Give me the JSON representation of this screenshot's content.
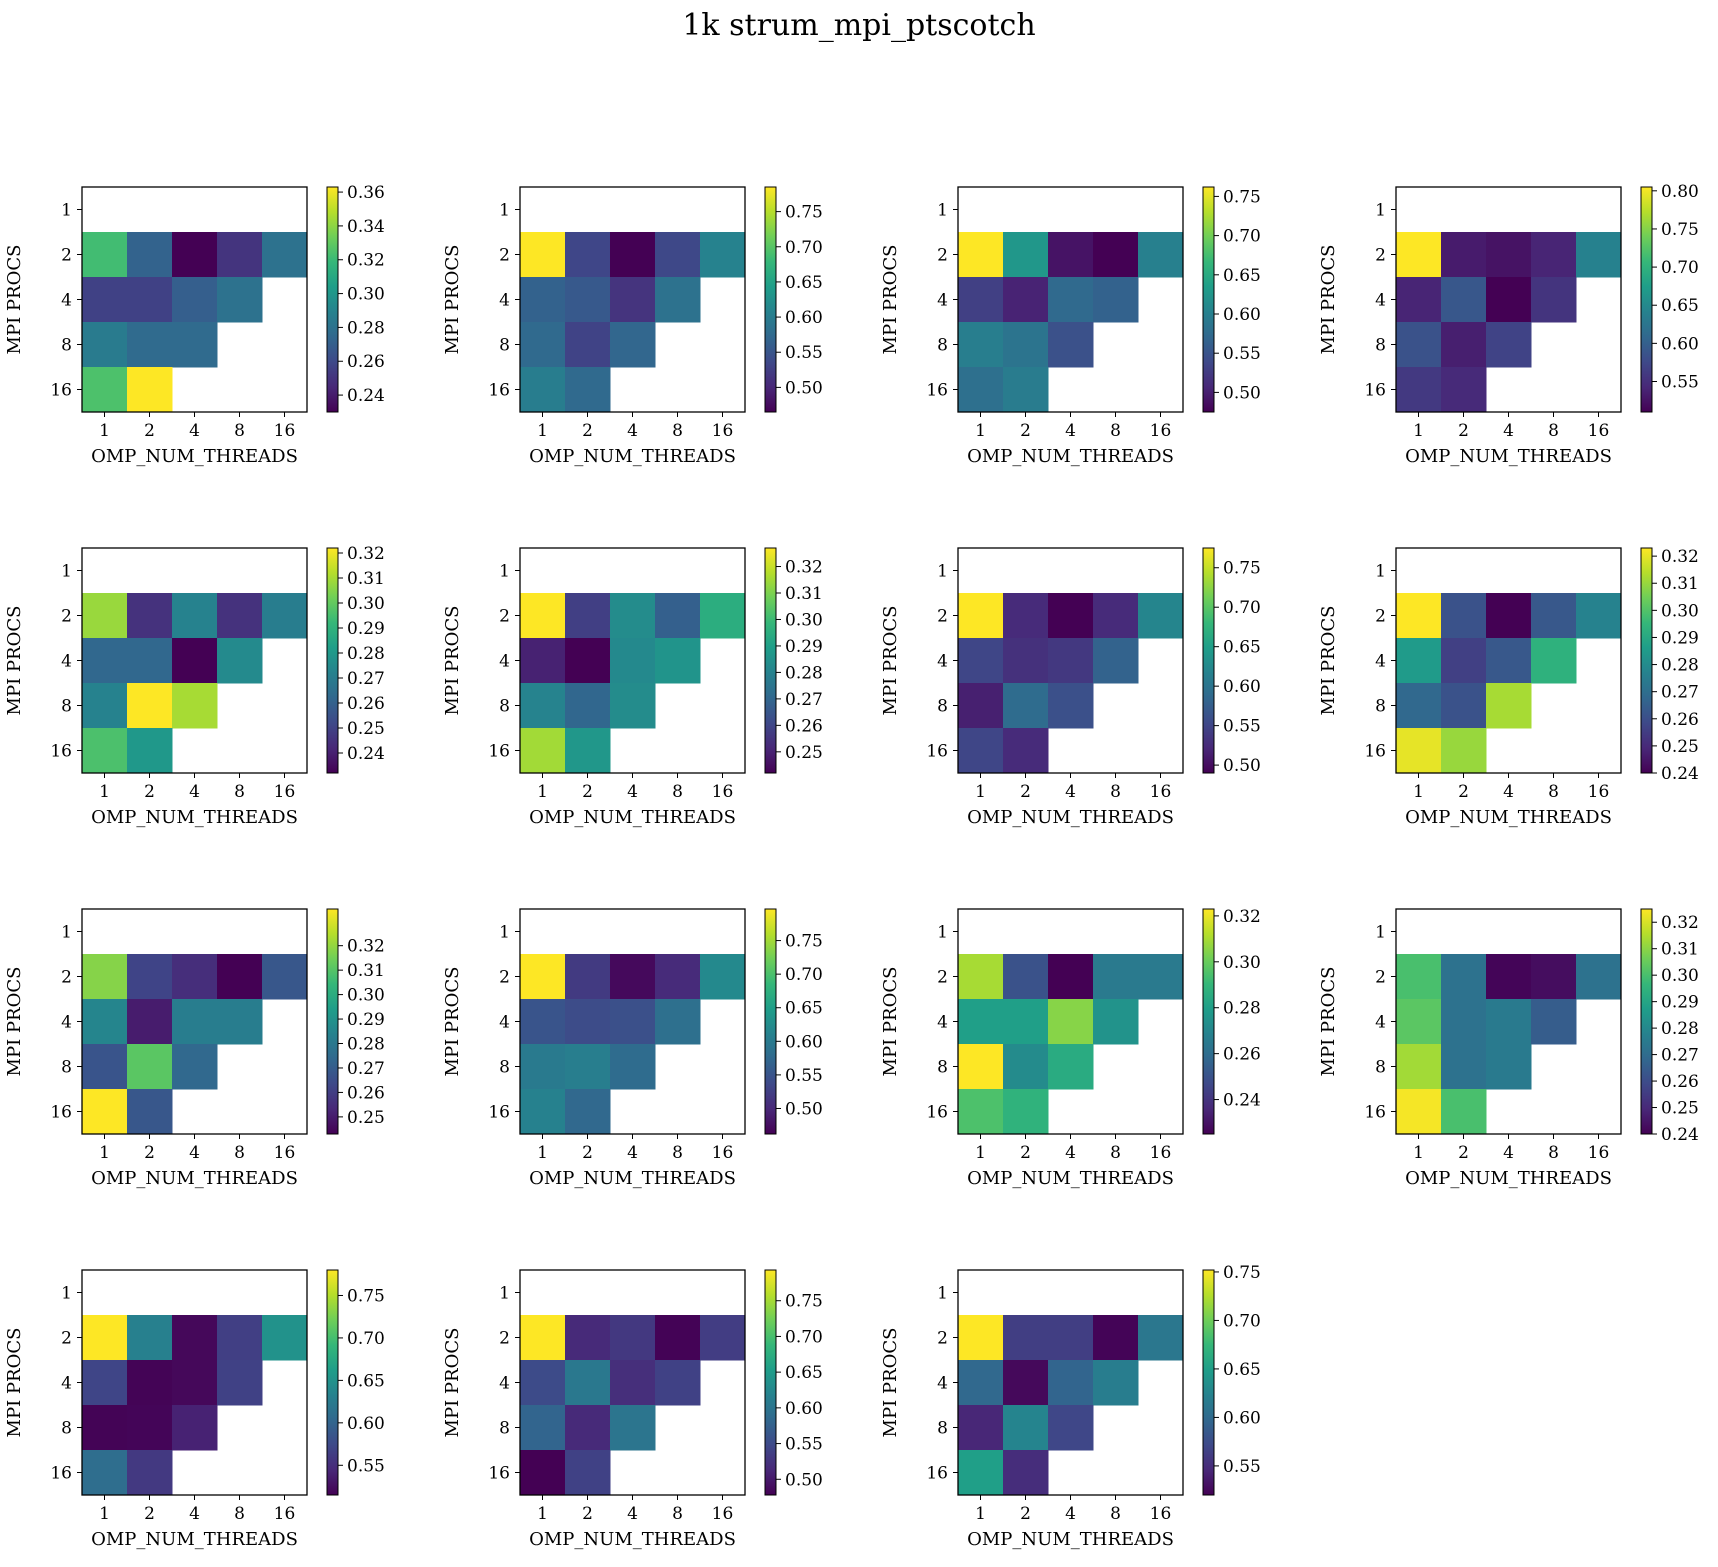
{
  "title": "1k strum_mpi_ptscotch",
  "colormap": "viridis",
  "chart_data": [
    {
      "type": "heatmap",
      "xlabel": "OMP_NUM_THREADS",
      "ylabel": "MPI PROCS",
      "x_categories": [
        "1",
        "2",
        "4",
        "8",
        "16"
      ],
      "y_categories": [
        "1",
        "2",
        "4",
        "8",
        "16"
      ],
      "vmin": 0.23,
      "vmax": 0.363,
      "cbar_ticks": [
        "0.24",
        "0.26",
        "0.28",
        "0.30",
        "0.32",
        "0.34",
        "0.36"
      ],
      "values": [
        [
          null,
          null,
          null,
          null,
          null
        ],
        [
          0.322,
          0.272,
          0.23,
          0.25,
          0.28
        ],
        [
          0.256,
          0.256,
          0.27,
          0.28,
          null
        ],
        [
          0.285,
          0.276,
          0.276,
          null,
          null
        ],
        [
          0.325,
          0.363,
          null,
          null,
          null
        ]
      ]
    },
    {
      "type": "heatmap",
      "xlabel": "OMP_NUM_THREADS",
      "ylabel": "MPI PROCS",
      "x_categories": [
        "1",
        "2",
        "4",
        "8",
        "16"
      ],
      "y_categories": [
        "1",
        "2",
        "4",
        "8",
        "16"
      ],
      "vmin": 0.465,
      "vmax": 0.785,
      "cbar_ticks": [
        "0.50",
        "0.55",
        "0.60",
        "0.65",
        "0.70",
        "0.75"
      ],
      "values": [
        [
          null,
          null,
          null,
          null,
          null
        ],
        [
          0.785,
          0.533,
          0.465,
          0.535,
          0.607
        ],
        [
          0.565,
          0.555,
          0.513,
          0.585,
          null
        ],
        [
          0.575,
          0.53,
          0.57,
          null,
          null
        ],
        [
          0.6,
          0.575,
          null,
          null,
          null
        ]
      ]
    },
    {
      "type": "heatmap",
      "xlabel": "OMP_NUM_THREADS",
      "ylabel": "MPI PROCS",
      "x_categories": [
        "1",
        "2",
        "4",
        "8",
        "16"
      ],
      "y_categories": [
        "1",
        "2",
        "4",
        "8",
        "16"
      ],
      "vmin": 0.475,
      "vmax": 0.762,
      "cbar_ticks": [
        "0.50",
        "0.55",
        "0.60",
        "0.65",
        "0.70",
        "0.75"
      ],
      "values": [
        [
          null,
          null,
          null,
          null,
          null
        ],
        [
          0.762,
          0.627,
          0.49,
          0.475,
          0.6
        ],
        [
          0.53,
          0.503,
          0.573,
          0.565,
          null
        ],
        [
          0.598,
          0.585,
          0.547,
          null,
          null
        ],
        [
          0.58,
          0.595,
          null,
          null,
          null
        ]
      ]
    },
    {
      "type": "heatmap",
      "xlabel": "OMP_NUM_THREADS",
      "ylabel": "MPI PROCS",
      "x_categories": [
        "1",
        "2",
        "4",
        "8",
        "16"
      ],
      "y_categories": [
        "1",
        "2",
        "4",
        "8",
        "16"
      ],
      "vmin": 0.51,
      "vmax": 0.805,
      "cbar_ticks": [
        "0.55",
        "0.60",
        "0.65",
        "0.70",
        "0.75",
        "0.80"
      ],
      "values": [
        [
          null,
          null,
          null,
          null,
          null
        ],
        [
          0.805,
          0.532,
          0.525,
          0.54,
          0.64
        ],
        [
          0.54,
          0.59,
          0.51,
          0.555,
          null
        ],
        [
          0.585,
          0.535,
          0.57,
          null,
          null
        ],
        [
          0.56,
          0.545,
          null,
          null,
          null
        ]
      ]
    },
    {
      "type": "heatmap",
      "xlabel": "OMP_NUM_THREADS",
      "ylabel": "MPI PROCS",
      "x_categories": [
        "1",
        "2",
        "4",
        "8",
        "16"
      ],
      "y_categories": [
        "1",
        "2",
        "4",
        "8",
        "16"
      ],
      "vmin": 0.232,
      "vmax": 0.322,
      "cbar_ticks": [
        "0.24",
        "0.25",
        "0.26",
        "0.27",
        "0.28",
        "0.29",
        "0.30",
        "0.31",
        "0.32"
      ],
      "values": [
        [
          null,
          null,
          null,
          null,
          null
        ],
        [
          0.308,
          0.245,
          0.272,
          0.245,
          0.27
        ],
        [
          0.262,
          0.262,
          0.232,
          0.275,
          null
        ],
        [
          0.272,
          0.322,
          0.31,
          null,
          null
        ],
        [
          0.296,
          0.28,
          null,
          null,
          null
        ]
      ]
    },
    {
      "type": "heatmap",
      "xlabel": "OMP_NUM_THREADS",
      "ylabel": "MPI PROCS",
      "x_categories": [
        "1",
        "2",
        "4",
        "8",
        "16"
      ],
      "y_categories": [
        "1",
        "2",
        "4",
        "8",
        "16"
      ],
      "vmin": 0.242,
      "vmax": 0.327,
      "cbar_ticks": [
        "0.25",
        "0.26",
        "0.27",
        "0.28",
        "0.29",
        "0.30",
        "0.31",
        "0.32"
      ],
      "values": [
        [
          null,
          null,
          null,
          null,
          null
        ],
        [
          0.327,
          0.258,
          0.283,
          0.268,
          0.295
        ],
        [
          0.25,
          0.242,
          0.282,
          0.286,
          null
        ],
        [
          0.28,
          0.27,
          0.283,
          null,
          null
        ],
        [
          0.315,
          0.287,
          null,
          null,
          null
        ]
      ]
    },
    {
      "type": "heatmap",
      "xlabel": "OMP_NUM_THREADS",
      "ylabel": "MPI PROCS",
      "x_categories": [
        "1",
        "2",
        "4",
        "8",
        "16"
      ],
      "y_categories": [
        "1",
        "2",
        "4",
        "8",
        "16"
      ],
      "vmin": 0.49,
      "vmax": 0.775,
      "cbar_ticks": [
        "0.50",
        "0.55",
        "0.60",
        "0.65",
        "0.70",
        "0.75"
      ],
      "values": [
        [
          null,
          null,
          null,
          null,
          null
        ],
        [
          0.775,
          0.525,
          0.49,
          0.525,
          0.62
        ],
        [
          0.55,
          0.53,
          0.537,
          0.58,
          null
        ],
        [
          0.515,
          0.59,
          0.56,
          null,
          null
        ],
        [
          0.55,
          0.525,
          null,
          null,
          null
        ]
      ]
    },
    {
      "type": "heatmap",
      "xlabel": "OMP_NUM_THREADS",
      "ylabel": "MPI PROCS",
      "x_categories": [
        "1",
        "2",
        "4",
        "8",
        "16"
      ],
      "y_categories": [
        "1",
        "2",
        "4",
        "8",
        "16"
      ],
      "vmin": 0.24,
      "vmax": 0.323,
      "cbar_ticks": [
        "0.24",
        "0.25",
        "0.26",
        "0.27",
        "0.28",
        "0.29",
        "0.30",
        "0.31",
        "0.32"
      ],
      "values": [
        [
          null,
          null,
          null,
          null,
          null
        ],
        [
          0.323,
          0.261,
          0.24,
          0.263,
          0.277
        ],
        [
          0.285,
          0.256,
          0.263,
          0.293,
          null
        ],
        [
          0.268,
          0.261,
          0.312,
          null,
          null
        ],
        [
          0.32,
          0.31,
          null,
          null,
          null
        ]
      ]
    },
    {
      "type": "heatmap",
      "xlabel": "OMP_NUM_THREADS",
      "ylabel": "MPI PROCS",
      "x_categories": [
        "1",
        "2",
        "4",
        "8",
        "16"
      ],
      "y_categories": [
        "1",
        "2",
        "4",
        "8",
        "16"
      ],
      "vmin": 0.243,
      "vmax": 0.335,
      "cbar_ticks": [
        "0.25",
        "0.26",
        "0.27",
        "0.28",
        "0.29",
        "0.30",
        "0.31",
        "0.32"
      ],
      "values": [
        [
          null,
          null,
          null,
          null,
          null
        ],
        [
          0.318,
          0.262,
          0.255,
          0.243,
          0.268
        ],
        [
          0.285,
          0.25,
          0.282,
          0.282,
          null
        ],
        [
          0.267,
          0.311,
          0.274,
          null,
          null
        ],
        [
          0.335,
          0.268,
          null,
          null,
          null
        ]
      ]
    },
    {
      "type": "heatmap",
      "xlabel": "OMP_NUM_THREADS",
      "ylabel": "MPI PROCS",
      "x_categories": [
        "1",
        "2",
        "4",
        "8",
        "16"
      ],
      "y_categories": [
        "1",
        "2",
        "4",
        "8",
        "16"
      ],
      "vmin": 0.462,
      "vmax": 0.797,
      "cbar_ticks": [
        "0.50",
        "0.55",
        "0.60",
        "0.65",
        "0.70",
        "0.75"
      ],
      "values": [
        [
          null,
          null,
          null,
          null,
          null
        ],
        [
          0.797,
          0.52,
          0.47,
          0.503,
          0.62
        ],
        [
          0.55,
          0.54,
          0.545,
          0.585,
          null
        ],
        [
          0.6,
          0.605,
          0.58,
          null,
          null
        ],
        [
          0.61,
          0.575,
          null,
          null,
          null
        ]
      ]
    },
    {
      "type": "heatmap",
      "xlabel": "OMP_NUM_THREADS",
      "ylabel": "MPI PROCS",
      "x_categories": [
        "1",
        "2",
        "4",
        "8",
        "16"
      ],
      "y_categories": [
        "1",
        "2",
        "4",
        "8",
        "16"
      ],
      "vmin": 0.225,
      "vmax": 0.323,
      "cbar_ticks": [
        "0.24",
        "0.26",
        "0.28",
        "0.30",
        "0.32"
      ],
      "values": [
        [
          null,
          null,
          null,
          null,
          null
        ],
        [
          0.31,
          0.25,
          0.225,
          0.265,
          0.265
        ],
        [
          0.28,
          0.28,
          0.305,
          0.275,
          null
        ],
        [
          0.323,
          0.272,
          0.285,
          null,
          null
        ],
        [
          0.295,
          0.288,
          null,
          null,
          null
        ]
      ]
    },
    {
      "type": "heatmap",
      "xlabel": "OMP_NUM_THREADS",
      "ylabel": "MPI PROCS",
      "x_categories": [
        "1",
        "2",
        "4",
        "8",
        "16"
      ],
      "y_categories": [
        "1",
        "2",
        "4",
        "8",
        "16"
      ],
      "vmin": 0.24,
      "vmax": 0.325,
      "cbar_ticks": [
        "0.24",
        "0.25",
        "0.26",
        "0.27",
        "0.28",
        "0.29",
        "0.30",
        "0.31",
        "0.32"
      ],
      "values": [
        [
          null,
          null,
          null,
          null,
          null
        ],
        [
          0.3,
          0.272,
          0.241,
          0.243,
          0.272
        ],
        [
          0.303,
          0.272,
          0.275,
          0.265,
          null
        ],
        [
          0.313,
          0.272,
          0.275,
          null,
          null
        ],
        [
          0.324,
          0.3,
          null,
          null,
          null
        ]
      ]
    },
    {
      "type": "heatmap",
      "xlabel": "OMP_NUM_THREADS",
      "ylabel": "MPI PROCS",
      "x_categories": [
        "1",
        "2",
        "4",
        "8",
        "16"
      ],
      "y_categories": [
        "1",
        "2",
        "4",
        "8",
        "16"
      ],
      "vmin": 0.515,
      "vmax": 0.78,
      "cbar_ticks": [
        "0.55",
        "0.60",
        "0.65",
        "0.70",
        "0.75"
      ],
      "values": [
        [
          null,
          null,
          null,
          null,
          null
        ],
        [
          0.78,
          0.63,
          0.52,
          0.565,
          0.65
        ],
        [
          0.57,
          0.517,
          0.52,
          0.567,
          null
        ],
        [
          0.517,
          0.518,
          0.54,
          null,
          null
        ],
        [
          0.61,
          0.56,
          null,
          null,
          null
        ]
      ]
    },
    {
      "type": "heatmap",
      "xlabel": "OMP_NUM_THREADS",
      "ylabel": "MPI PROCS",
      "x_categories": [
        "1",
        "2",
        "4",
        "8",
        "16"
      ],
      "y_categories": [
        "1",
        "2",
        "4",
        "8",
        "16"
      ],
      "vmin": 0.478,
      "vmax": 0.793,
      "cbar_ticks": [
        "0.50",
        "0.55",
        "0.60",
        "0.65",
        "0.70",
        "0.75"
      ],
      "values": [
        [
          null,
          null,
          null,
          null,
          null
        ],
        [
          0.793,
          0.515,
          0.53,
          0.48,
          0.535
        ],
        [
          0.55,
          0.605,
          0.52,
          0.54,
          null
        ],
        [
          0.58,
          0.515,
          0.6,
          null,
          null
        ],
        [
          0.478,
          0.54,
          null,
          null,
          null
        ]
      ]
    },
    {
      "type": "heatmap",
      "xlabel": "OMP_NUM_THREADS",
      "ylabel": "MPI PROCS",
      "x_categories": [
        "1",
        "2",
        "4",
        "8",
        "16"
      ],
      "y_categories": [
        "1",
        "2",
        "4",
        "8",
        "16"
      ],
      "vmin": 0.52,
      "vmax": 0.752,
      "cbar_ticks": [
        "0.55",
        "0.60",
        "0.65",
        "0.70",
        "0.75"
      ],
      "values": [
        [
          null,
          null,
          null,
          null,
          null
        ],
        [
          0.752,
          0.563,
          0.563,
          0.522,
          0.612
        ],
        [
          0.598,
          0.525,
          0.595,
          0.618,
          null
        ],
        [
          0.545,
          0.625,
          0.57,
          null,
          null
        ],
        [
          0.65,
          0.55,
          null,
          null,
          null
        ]
      ]
    }
  ]
}
